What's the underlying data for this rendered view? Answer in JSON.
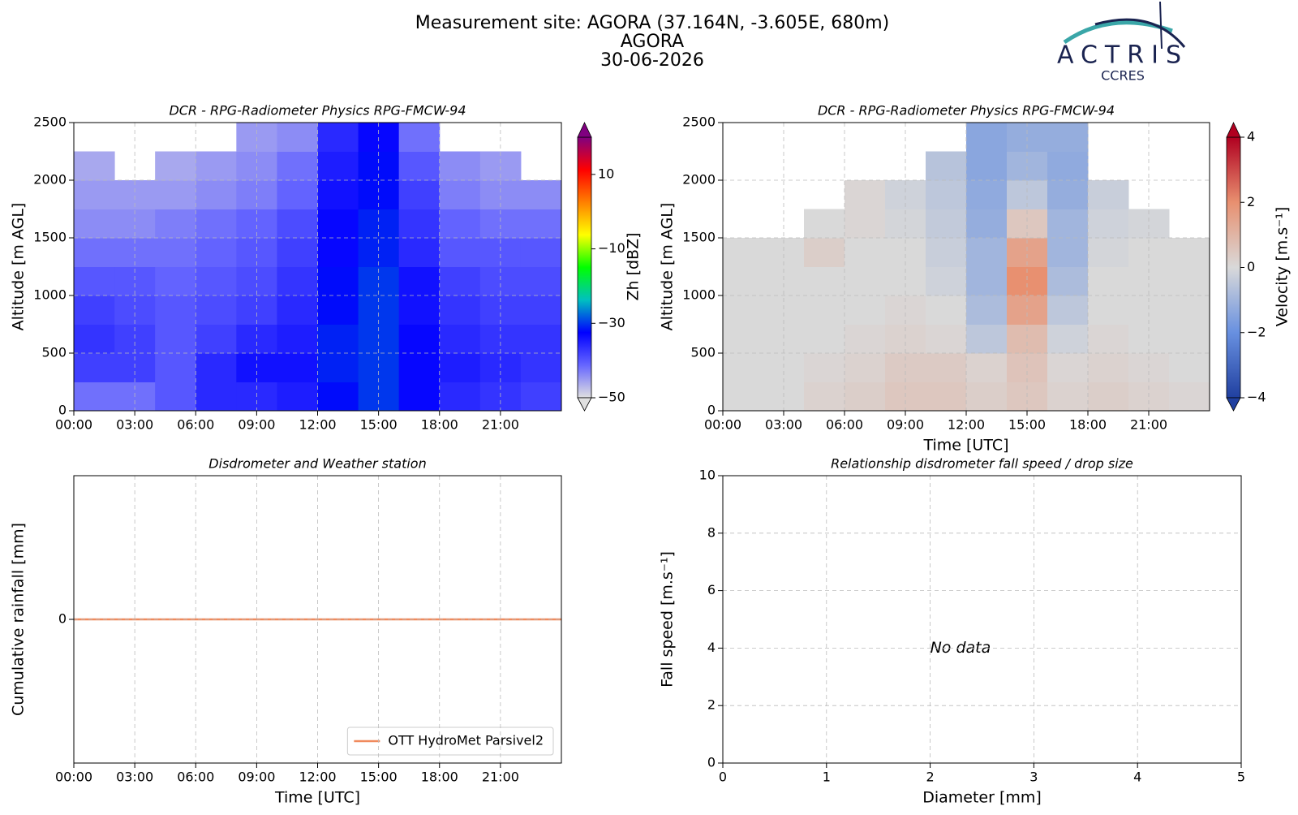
{
  "header": {
    "title": [
      "Measurement site: AGORA (37.164N, -3.605E, 680m)",
      "AGORA",
      "30-06-2026"
    ],
    "logo": "ACTRIS",
    "logo_sub": "CCRES"
  },
  "chart_data": [
    {
      "type": "heatmap",
      "title": "DCR - RPG-Radiometer Physics RPG-FMCW-94",
      "ylabel": "Altitude [m AGL]",
      "zlabel": "Zh [dBZ]",
      "x": [
        1,
        3,
        5,
        7,
        9,
        11,
        13,
        15,
        17,
        19,
        21,
        23
      ],
      "y": [
        125,
        375,
        625,
        875,
        1125,
        1375,
        1625,
        1875,
        2125,
        2375
      ],
      "z": [
        [
          -42,
          -42,
          -40,
          -36,
          -36,
          -35,
          -32,
          -30,
          -33,
          -36,
          -37,
          -38
        ],
        [
          -38,
          -38,
          -40,
          -36,
          -34,
          -34,
          -31,
          -30,
          -33,
          -35,
          -36,
          -37
        ],
        [
          -37,
          -38,
          -40,
          -38,
          -36,
          -35,
          -31,
          -30,
          -33,
          -36,
          -37,
          -37
        ],
        [
          -38,
          -39,
          -40,
          -39,
          -38,
          -36,
          -32,
          -30,
          -34,
          -37,
          -38,
          -38
        ],
        [
          -40,
          -40,
          -41,
          -40,
          -39,
          -37,
          -32,
          -30,
          -34,
          -38,
          -39,
          -39
        ],
        [
          -42,
          -42,
          -42,
          -41,
          -40,
          -38,
          -33,
          -31,
          -36,
          -40,
          -40,
          -40
        ],
        [
          -44,
          -44,
          -43,
          -42,
          -41,
          -39,
          -33,
          -31,
          -37,
          -41,
          -42,
          -42
        ],
        [
          -45,
          -45,
          -45,
          -44,
          -43,
          -41,
          -34,
          -32,
          -38,
          -43,
          -44,
          -44
        ],
        [
          -46,
          null,
          -46,
          -45,
          -44,
          -42,
          -35,
          -32,
          -40,
          -44,
          -45,
          null
        ],
        [
          null,
          null,
          null,
          null,
          -45,
          -44,
          -36,
          -33,
          -42,
          null,
          null,
          null
        ]
      ],
      "xlim": [
        0,
        24
      ],
      "xticks": [
        {
          "value": 0,
          "label": "00:00"
        },
        {
          "value": 3,
          "label": "03:00"
        },
        {
          "value": 6,
          "label": "06:00"
        },
        {
          "value": 9,
          "label": "09:00"
        },
        {
          "value": 12,
          "label": "12:00"
        },
        {
          "value": 15,
          "label": "15:00"
        },
        {
          "value": 18,
          "label": "18:00"
        },
        {
          "value": 21,
          "label": "21:00"
        }
      ],
      "ylim": [
        0,
        2500
      ],
      "yticks": [
        0,
        500,
        1000,
        1500,
        2000,
        2500
      ],
      "zlim": [
        -50,
        20
      ],
      "zticks": [
        {
          "value": -50,
          "label": "−50"
        },
        {
          "value": -30,
          "label": "−30"
        },
        {
          "value": -10,
          "label": "−10"
        },
        10
      ],
      "colormap": [
        "#e0e0e0",
        "#6666ff",
        "#0000ff",
        "#00c0c0",
        "#00ff00",
        "#ffff00",
        "#ff8000",
        "#ff0000",
        "#800080"
      ],
      "grid": true
    },
    {
      "type": "heatmap",
      "title": "DCR - RPG-Radiometer Physics RPG-FMCW-94",
      "xlabel": "Time [UTC]",
      "ylabel": "Altitude [m AGL]",
      "zlabel": "Velocity [m.s⁻¹]",
      "x": [
        1,
        3,
        5,
        7,
        9,
        11,
        13,
        15,
        17,
        19,
        21,
        23
      ],
      "y": [
        125,
        375,
        625,
        875,
        1125,
        1375,
        1625,
        1875,
        2125,
        2375
      ],
      "z": [
        [
          0,
          0,
          0.2,
          0.3,
          0.5,
          0.5,
          0.3,
          0.5,
          0.2,
          0.3,
          0.2,
          0.1
        ],
        [
          0,
          0,
          0.1,
          0.2,
          0.4,
          0.4,
          0.2,
          0.6,
          0.1,
          0.2,
          0.1,
          0
        ],
        [
          0,
          0,
          0,
          0.1,
          0.2,
          0.1,
          -0.5,
          0.8,
          -0.2,
          0.1,
          0,
          0
        ],
        [
          0,
          0,
          0,
          0,
          0.1,
          0,
          -0.8,
          1.5,
          -0.5,
          0,
          0,
          0
        ],
        [
          0,
          0,
          0,
          0,
          0,
          -0.2,
          -1,
          2,
          -0.8,
          0,
          0,
          0
        ],
        [
          0,
          0,
          0.3,
          0,
          0,
          -0.3,
          -1,
          1.5,
          -1,
          -0.1,
          0,
          0
        ],
        [
          null,
          null,
          0,
          0.1,
          -0.1,
          -0.4,
          -1.2,
          0.5,
          -1,
          -0.2,
          -0.1,
          null
        ],
        [
          null,
          null,
          null,
          0.1,
          -0.2,
          -0.5,
          -1.3,
          -0.5,
          -1.2,
          -0.3,
          null,
          null
        ],
        [
          null,
          null,
          null,
          null,
          null,
          -0.6,
          -1.4,
          -1,
          -1.3,
          null,
          null,
          null
        ],
        [
          null,
          null,
          null,
          null,
          null,
          null,
          -1.4,
          -1.2,
          -1.2,
          null,
          null,
          null
        ]
      ],
      "xlim": [
        0,
        24
      ],
      "xticks": [
        {
          "value": 0,
          "label": "00:00"
        },
        {
          "value": 3,
          "label": "03:00"
        },
        {
          "value": 6,
          "label": "06:00"
        },
        {
          "value": 9,
          "label": "09:00"
        },
        {
          "value": 12,
          "label": "12:00"
        },
        {
          "value": 15,
          "label": "15:00"
        },
        {
          "value": 18,
          "label": "18:00"
        },
        {
          "value": 21,
          "label": "21:00"
        }
      ],
      "ylim": [
        0,
        2500
      ],
      "yticks": [
        0,
        500,
        1000,
        1500,
        2000,
        2500
      ],
      "zlim": [
        -4,
        4
      ],
      "zticks": [
        {
          "value": -4,
          "label": "−4"
        },
        {
          "value": -2,
          "label": "−2"
        },
        0,
        2,
        4
      ],
      "colormap": [
        "#2040a0",
        "#6890e0",
        "#d9d9d9",
        "#e89070",
        "#b00020"
      ],
      "grid": true
    },
    {
      "type": "line",
      "title": "Disdrometer and Weather station",
      "xlabel": "Time [UTC]",
      "ylabel": "Cumulative rainfall [mm]",
      "x": [
        0,
        24
      ],
      "series": [
        {
          "name": "OTT HydroMet Parsivel2",
          "color": "#f08a5d",
          "values": [
            0,
            0
          ]
        }
      ],
      "xlim": [
        0,
        24
      ],
      "xticks": [
        {
          "value": 0,
          "label": "00:00"
        },
        {
          "value": 3,
          "label": "03:00"
        },
        {
          "value": 6,
          "label": "06:00"
        },
        {
          "value": 9,
          "label": "09:00"
        },
        {
          "value": 12,
          "label": "12:00"
        },
        {
          "value": 15,
          "label": "15:00"
        },
        {
          "value": 18,
          "label": "18:00"
        },
        {
          "value": 21,
          "label": "21:00"
        }
      ],
      "ylim": [
        -1,
        1
      ],
      "yticks": [
        0
      ],
      "grid": true,
      "legend": "lower right"
    },
    {
      "type": "scatter",
      "title": "Relationship disdrometer fall speed / drop size",
      "xlabel": "Diameter [mm]",
      "ylabel": "Fall speed [m.s⁻¹]",
      "annotation": "No data",
      "xlim": [
        0,
        5
      ],
      "xticks": [
        0,
        1,
        2,
        3,
        4,
        5
      ],
      "ylim": [
        0,
        10
      ],
      "yticks": [
        0,
        2,
        4,
        6,
        8,
        10
      ],
      "grid": true
    }
  ]
}
